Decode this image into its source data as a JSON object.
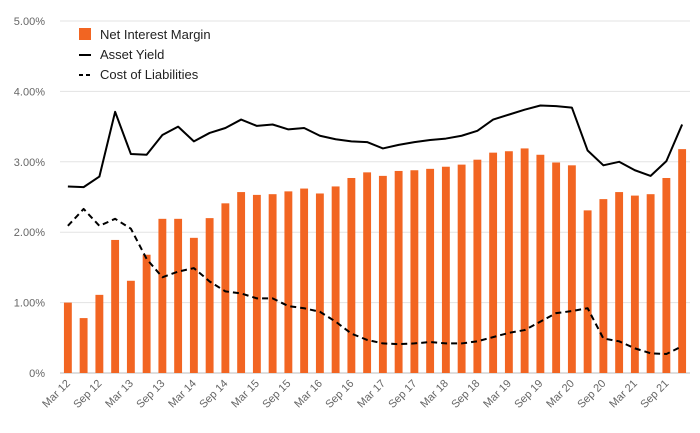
{
  "chart_data": {
    "type": "bar",
    "categories": [
      "Mar 12",
      "Jun 12",
      "Sep 12",
      "Dec 12",
      "Mar 13",
      "Jun 13",
      "Sep 13",
      "Dec 13",
      "Mar 14",
      "Jun 14",
      "Sep 14",
      "Dec 14",
      "Mar 15",
      "Jun 15",
      "Sep 15",
      "Dec 15",
      "Mar 16",
      "Jun 16",
      "Sep 16",
      "Dec 16",
      "Mar 17",
      "Jun 17",
      "Sep 17",
      "Dec 17",
      "Mar 18",
      "Jun 18",
      "Sep 18",
      "Dec 18",
      "Mar 19",
      "Jun 19",
      "Sep 19",
      "Dec 19",
      "Mar 20",
      "Jun 20",
      "Sep 20",
      "Dec 20",
      "Mar 21",
      "Jun 21",
      "Sep 21",
      "Dec 21"
    ],
    "x_tick_labels": [
      "Mar 12",
      "Sep 12",
      "Mar 13",
      "Sep 13",
      "Mar 14",
      "Sep 14",
      "Mar 15",
      "Sep 15",
      "Mar 16",
      "Sep 16",
      "Mar 17",
      "Sep 17",
      "Mar 18",
      "Sep 18",
      "Mar 19",
      "Sep 19",
      "Mar 20",
      "Sep 20",
      "Mar 21",
      "Sep 21"
    ],
    "y_tick_labels": [
      "0%",
      "1.00%",
      "2.00%",
      "3.00%",
      "4.00%",
      "5.00%"
    ],
    "ylim": [
      0,
      5
    ],
    "series": [
      {
        "name": "Net Interest Margin",
        "type": "bar",
        "color": "#f26522",
        "values": [
          1.0,
          0.78,
          1.11,
          1.89,
          1.31,
          1.68,
          2.19,
          2.19,
          1.92,
          2.2,
          2.41,
          2.57,
          2.53,
          2.54,
          2.58,
          2.62,
          2.55,
          2.65,
          2.77,
          2.85,
          2.8,
          2.87,
          2.88,
          2.9,
          2.93,
          2.96,
          3.03,
          3.13,
          3.15,
          3.19,
          3.1,
          2.99,
          2.95,
          2.31,
          2.47,
          2.57,
          2.52,
          2.54,
          2.77,
          3.18
        ]
      },
      {
        "name": "Asset Yield",
        "type": "line",
        "style": "solid",
        "color": "#000000",
        "values": [
          2.65,
          2.64,
          2.79,
          3.71,
          3.11,
          3.1,
          3.38,
          3.5,
          3.29,
          3.41,
          3.48,
          3.6,
          3.51,
          3.53,
          3.46,
          3.48,
          3.37,
          3.32,
          3.29,
          3.28,
          3.19,
          3.24,
          3.28,
          3.31,
          3.33,
          3.37,
          3.44,
          3.6,
          3.67,
          3.74,
          3.8,
          3.79,
          3.77,
          3.16,
          2.95,
          3.0,
          2.88,
          2.8,
          3.01,
          3.53
        ]
      },
      {
        "name": "Cost of Liabilities",
        "type": "line",
        "style": "dashed",
        "color": "#000000",
        "values": [
          2.09,
          2.33,
          2.09,
          2.19,
          2.05,
          1.62,
          1.36,
          1.44,
          1.49,
          1.3,
          1.16,
          1.13,
          1.06,
          1.06,
          0.95,
          0.92,
          0.87,
          0.73,
          0.56,
          0.47,
          0.42,
          0.41,
          0.42,
          0.44,
          0.42,
          0.42,
          0.45,
          0.51,
          0.57,
          0.61,
          0.73,
          0.85,
          0.88,
          0.92,
          0.49,
          0.45,
          0.35,
          0.28,
          0.27,
          0.38
        ]
      }
    ],
    "legend": [
      {
        "label": "Net Interest Margin",
        "marker": "square",
        "color": "#f26522"
      },
      {
        "label": "Asset Yield",
        "marker": "solid-line",
        "color": "#000000"
      },
      {
        "label": "Cost of Liabilities",
        "marker": "dashed-line",
        "color": "#000000"
      }
    ],
    "legend_position": "top-left",
    "grid": "horizontal",
    "title": "",
    "xlabel": "",
    "ylabel": ""
  }
}
